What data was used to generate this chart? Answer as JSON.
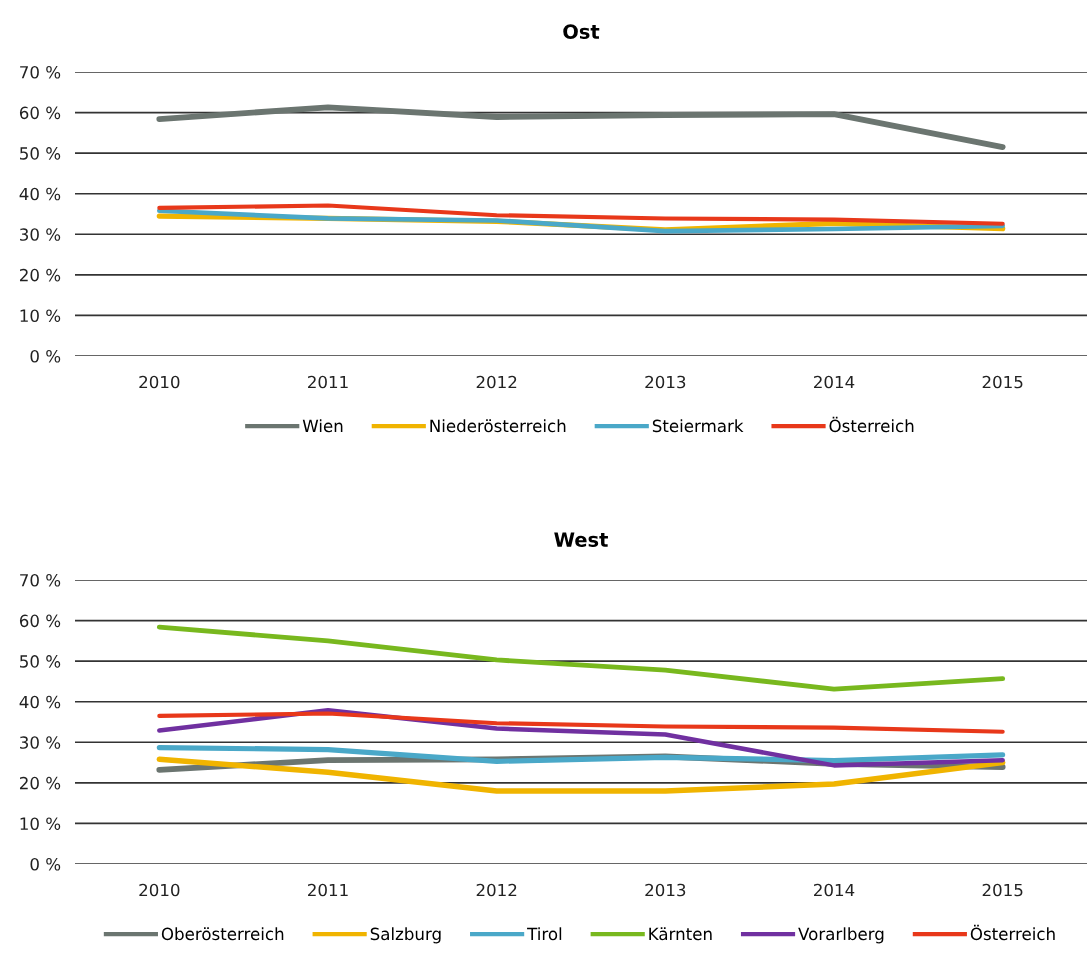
{
  "chart_data": [
    {
      "type": "line",
      "title": "Ost",
      "categories": [
        "2010",
        "2011",
        "2012",
        "2013",
        "2014",
        "2015"
      ],
      "series": [
        {
          "name": "Wien",
          "color": "#6b7570",
          "values": [
            58.4,
            61.3,
            58.9,
            59.4,
            59.6,
            51.5
          ]
        },
        {
          "name": "Niederösterreich",
          "color": "#f0b400",
          "values": [
            34.5,
            33.9,
            33.2,
            31.1,
            32.7,
            31.4
          ]
        },
        {
          "name": "Steiermark",
          "color": "#4aa8c8",
          "values": [
            35.8,
            33.9,
            33.4,
            30.8,
            31.3,
            32.1
          ]
        },
        {
          "name": "Österreich",
          "color": "#e8381a",
          "values": [
            36.5,
            37.1,
            34.7,
            33.9,
            33.6,
            32.6
          ]
        }
      ],
      "ylim": [
        0,
        70
      ],
      "yticks": [
        {
          "value": 0,
          "label": "0 %"
        },
        {
          "value": 10,
          "label": "10 %"
        },
        {
          "value": 20,
          "label": "20 %"
        },
        {
          "value": 30,
          "label": "30 %"
        },
        {
          "value": 40,
          "label": "40 %"
        },
        {
          "value": 50,
          "label": "50 %"
        },
        {
          "value": 60,
          "label": "60 %"
        },
        {
          "value": 70,
          "label": "70 %"
        }
      ],
      "grid": "y",
      "legend": "bottom",
      "marker": "none",
      "line_style": "solid"
    },
    {
      "type": "line",
      "title": "West",
      "categories": [
        "2010",
        "2011",
        "2012",
        "2013",
        "2014",
        "2015"
      ],
      "series": [
        {
          "name": "Oberösterreich",
          "color": "#6b7570",
          "values": [
            23.2,
            25.6,
            25.8,
            26.5,
            24.7,
            23.9
          ]
        },
        {
          "name": "Salzburg",
          "color": "#f0b400",
          "values": [
            25.8,
            22.6,
            18.0,
            18.0,
            19.7,
            25.0
          ]
        },
        {
          "name": "Tirol",
          "color": "#4aa8c8",
          "values": [
            28.7,
            28.2,
            25.3,
            26.3,
            25.5,
            26.9
          ]
        },
        {
          "name": "Kärnten",
          "color": "#78b81e",
          "values": [
            58.4,
            55.0,
            50.3,
            47.8,
            43.1,
            45.7
          ]
        },
        {
          "name": "Vorarlberg",
          "color": "#7030a0",
          "values": [
            32.9,
            37.9,
            33.4,
            31.9,
            24.3,
            25.6
          ]
        },
        {
          "name": "Österreich",
          "color": "#e8381a",
          "values": [
            36.5,
            37.1,
            34.7,
            33.9,
            33.6,
            32.6
          ]
        }
      ],
      "ylim": [
        0,
        70
      ],
      "yticks": [
        {
          "value": 0,
          "label": "0 %"
        },
        {
          "value": 10,
          "label": "10 %"
        },
        {
          "value": 20,
          "label": "20 %"
        },
        {
          "value": 30,
          "label": "30 %"
        },
        {
          "value": 40,
          "label": "40 %"
        },
        {
          "value": 50,
          "label": "50 %"
        },
        {
          "value": 60,
          "label": "60 %"
        },
        {
          "value": 70,
          "label": "70 %"
        }
      ],
      "grid": "y",
      "legend": "bottom",
      "marker": "none",
      "line_style": "solid"
    }
  ]
}
